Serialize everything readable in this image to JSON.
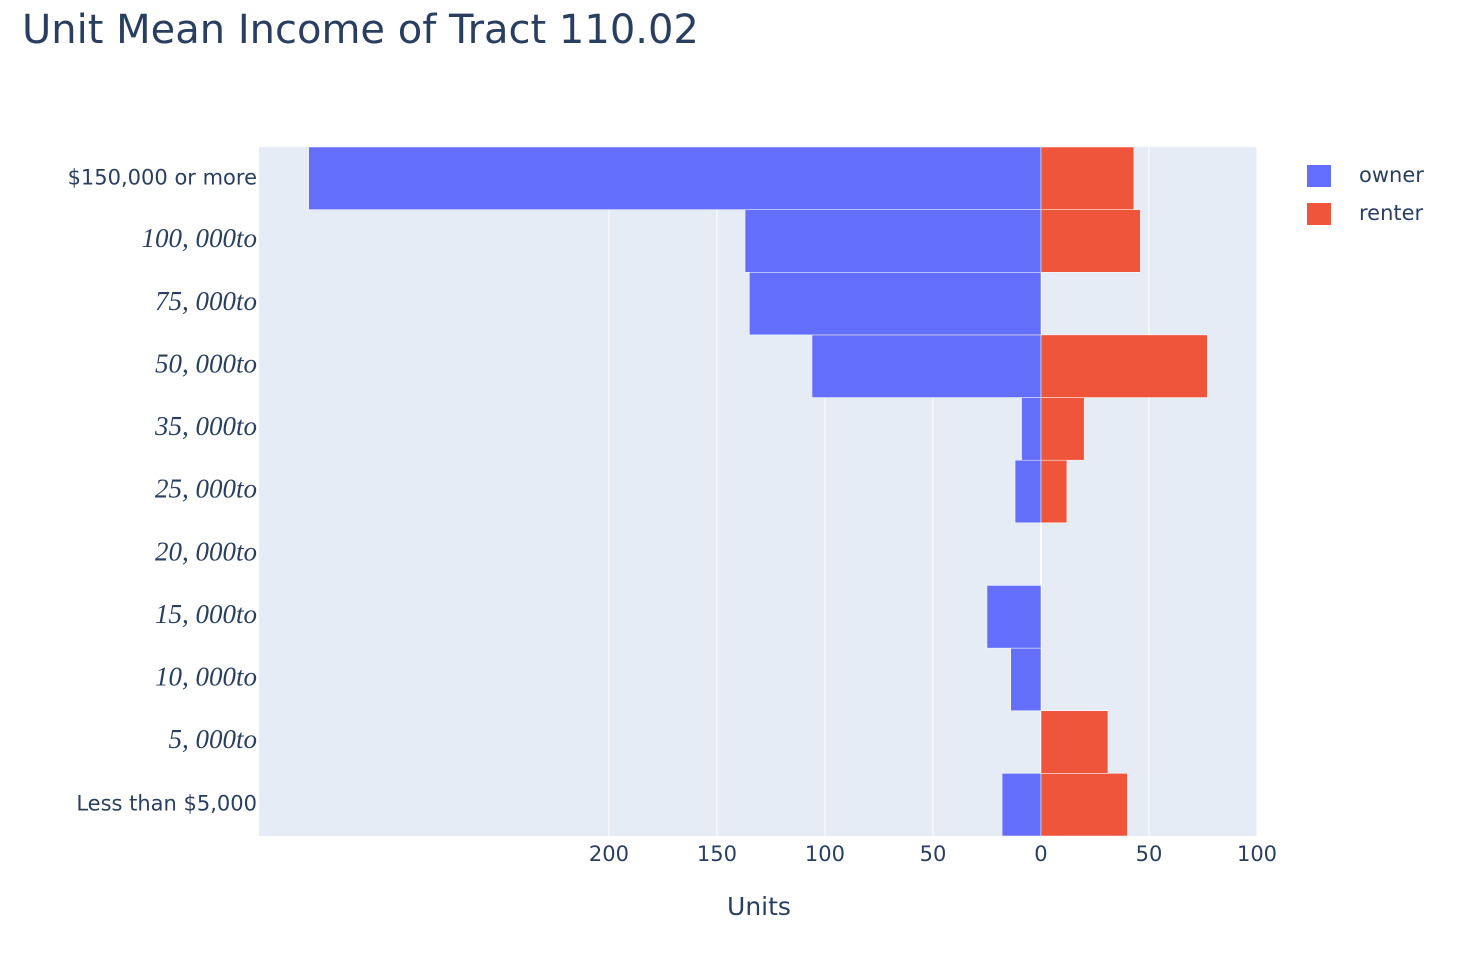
{
  "chart_data": {
    "type": "bar",
    "title": "Unit Mean Income of Tract 110.02",
    "x_label": "Units",
    "categories": [
      "Less than $5,000",
      "5, 000to",
      "10, 000to",
      "15, 000to",
      "20, 000to",
      "25, 000to",
      "35, 000to",
      "50, 000to",
      "75, 000to",
      "100, 000to",
      "$150,000 or more"
    ],
    "series": [
      {
        "name": "owner",
        "color": "#636efa",
        "values": [
          -18,
          0,
          -14,
          -25,
          0,
          -12,
          -9,
          -106,
          -135,
          -137,
          -339
        ]
      },
      {
        "name": "renter",
        "color": "#ef553b",
        "values": [
          40,
          31,
          0,
          0,
          0,
          12,
          20,
          77,
          0,
          46,
          43
        ]
      }
    ],
    "xlim": [
      -362,
      100
    ],
    "xticks": [
      {
        "value": -200,
        "label": "200"
      },
      {
        "value": -150,
        "label": "150"
      },
      {
        "value": -100,
        "label": "100"
      },
      {
        "value": -50,
        "label": "50"
      },
      0,
      50,
      100
    ],
    "grid": true,
    "legend": "top-right"
  }
}
